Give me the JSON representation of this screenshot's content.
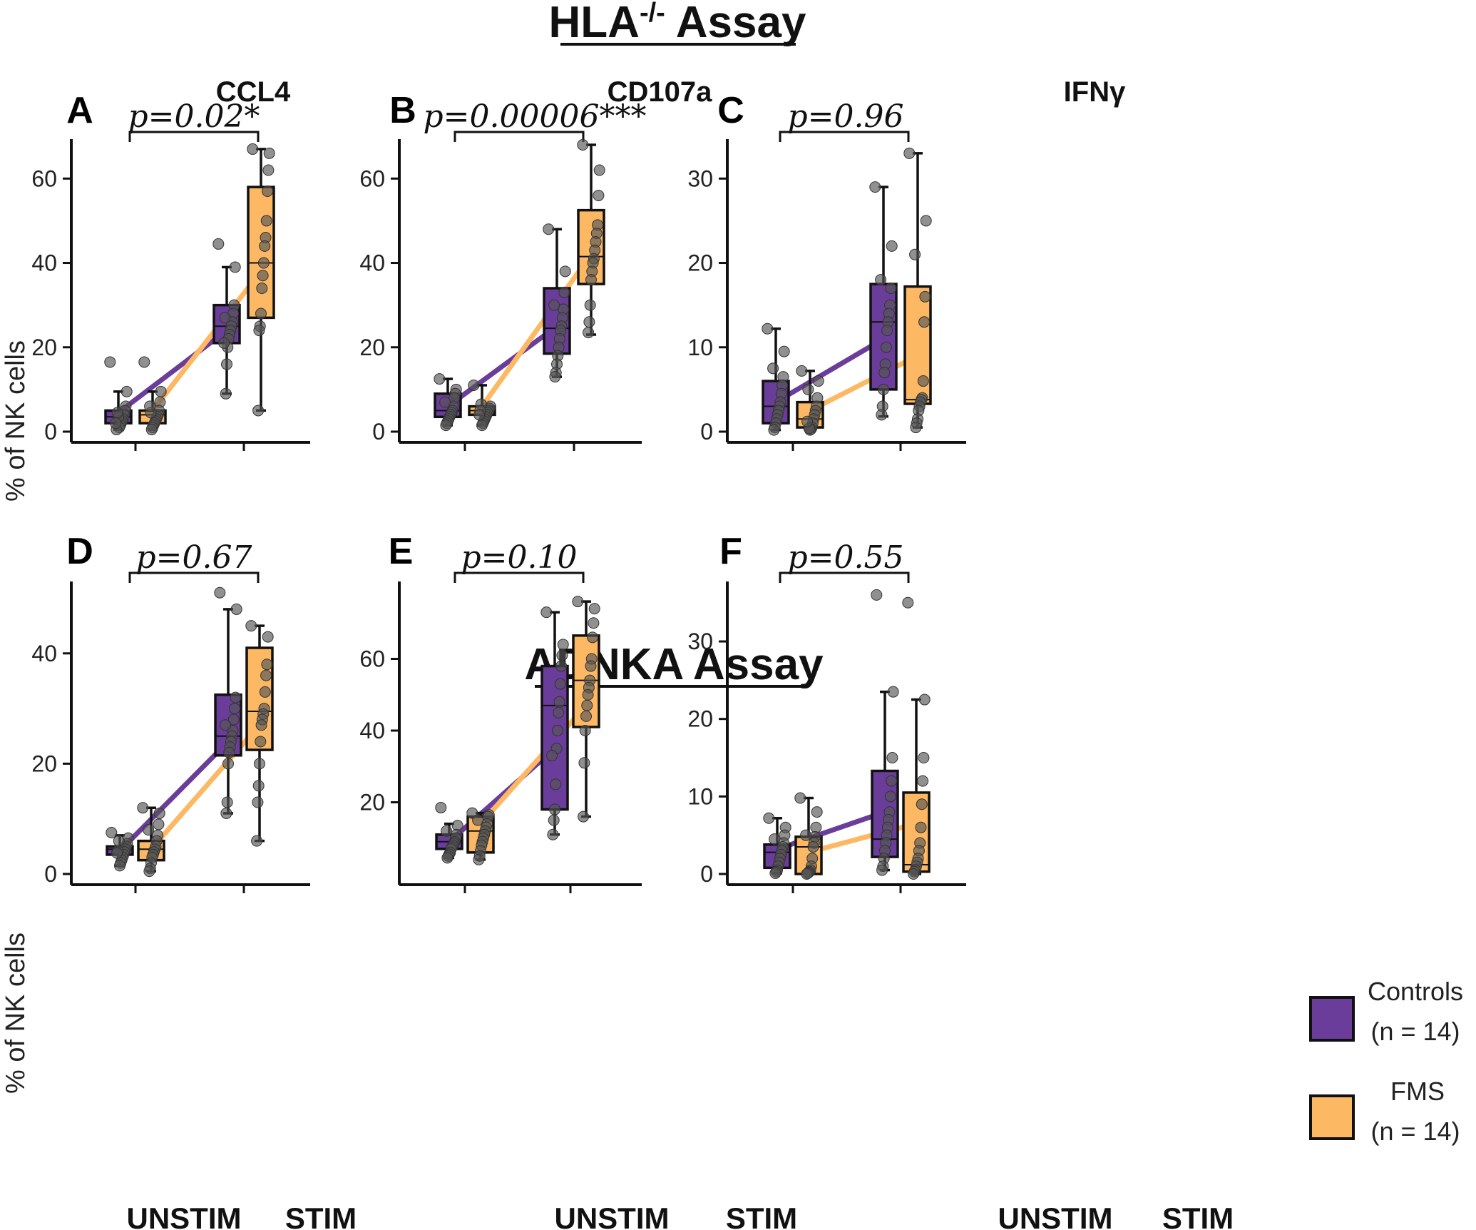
{
  "titles": {
    "hla_main": "HLA",
    "hla_sup": "-/-",
    "hla_tail": " Assay",
    "adnka": "ADNKA Assay"
  },
  "columns": [
    "CCL4",
    "CD107a",
    "IFNγ"
  ],
  "ylabel": "% of NK cells",
  "legend": {
    "controls_label": "Controls",
    "controls_n": "(n = 14)",
    "fms_label": "FMS",
    "fms_n": "(n = 14)"
  },
  "colors": {
    "controls": "#6a3d9a",
    "fms": "#fdb863",
    "point": "#555555"
  },
  "chart_data": [
    {
      "letter": "A",
      "assay": "HLA-/-",
      "title": "CCL4",
      "type": "box",
      "pvalue": "p=0.02*",
      "ylim": [
        0,
        68
      ],
      "yticks": [
        0,
        20,
        40,
        60
      ],
      "categories": [
        "UNSTIM",
        "STIM"
      ],
      "series": [
        {
          "name": "Controls",
          "boxes": [
            {
              "q1": 2,
              "median": 3.5,
              "q3": 5,
              "min": 0.5,
              "max": 9.5
            },
            {
              "q1": 21,
              "median": 25,
              "q3": 30,
              "min": 9,
              "max": 39
            }
          ],
          "points": [
            [
              16.5,
              9.5,
              6,
              5,
              4,
              3,
              2.5,
              2,
              1.5,
              1,
              3.5,
              4.5,
              0.5,
              2
            ],
            [
              44.5,
              39,
              30,
              28,
              26,
              25,
              24,
              23,
              22,
              20,
              16,
              9,
              27,
              21
            ]
          ],
          "means": [
            4.5,
            24
          ]
        },
        {
          "name": "FMS",
          "boxes": [
            {
              "q1": 2,
              "median": 4,
              "q3": 5,
              "min": 0.5,
              "max": 9.5
            },
            {
              "q1": 27,
              "median": 40,
              "q3": 58,
              "min": 5,
              "max": 67
            }
          ],
          "points": [
            [
              16.5,
              9.5,
              7,
              5,
              4,
              3.5,
              3,
              2.5,
              2,
              1.5,
              1,
              0.5,
              4.5,
              6
            ],
            [
              67,
              66,
              62,
              57,
              50,
              46,
              44,
              40,
              37,
              34,
              28,
              25,
              24,
              5
            ]
          ],
          "means": [
            5,
            38
          ]
        }
      ]
    },
    {
      "letter": "B",
      "assay": "HLA-/-",
      "title": "CD107a",
      "type": "box",
      "pvalue": "p=0.00006***",
      "ylim": [
        0,
        68
      ],
      "yticks": [
        0,
        20,
        40,
        60
      ],
      "categories": [
        "UNSTIM",
        "STIM"
      ],
      "series": [
        {
          "name": "Controls",
          "boxes": [
            {
              "q1": 3.5,
              "median": 5,
              "q3": 9,
              "min": 1.5,
              "max": 12.5
            },
            {
              "q1": 18.5,
              "median": 24.5,
              "q3": 34,
              "min": 13,
              "max": 48
            }
          ],
          "points": [
            [
              12.5,
              10,
              9,
              8,
              6,
              5,
              4.5,
              4,
              3.5,
              3,
              2.5,
              2,
              1.5,
              7
            ],
            [
              48,
              38,
              33,
              29,
              27,
              25,
              24,
              22,
              20,
              18,
              16,
              14,
              13,
              30
            ]
          ],
          "means": [
            6,
            25
          ]
        },
        {
          "name": "FMS",
          "boxes": [
            {
              "q1": 4,
              "median": 5,
              "q3": 6,
              "min": 1.5,
              "max": 11
            },
            {
              "q1": 35,
              "median": 41.5,
              "q3": 52.5,
              "min": 23,
              "max": 68
            }
          ],
          "points": [
            [
              11,
              6,
              5.5,
              5,
              4.5,
              4,
              3.5,
              3,
              2.5,
              2,
              1.5,
              6.5,
              5,
              4
            ],
            [
              68,
              62,
              56,
              49,
              47,
              45,
              43,
              41,
              40,
              38,
              36,
              30,
              26,
              23.5
            ]
          ],
          "means": [
            6,
            42
          ]
        }
      ]
    },
    {
      "letter": "C",
      "assay": "HLA-/-",
      "title": "IFNγ",
      "type": "box",
      "pvalue": "p=0.96",
      "ylim": [
        0,
        34
      ],
      "yticks": [
        0,
        10,
        20,
        30
      ],
      "categories": [
        "UNSTIM",
        "STIM"
      ],
      "series": [
        {
          "name": "Controls",
          "boxes": [
            {
              "q1": 1,
              "median": 3,
              "q3": 6,
              "min": 0.2,
              "max": 12.2
            },
            {
              "q1": 5,
              "median": 13,
              "q3": 17.5,
              "min": 1.8,
              "max": 29
            }
          ],
          "points": [
            [
              12.2,
              9.5,
              6.5,
              5.5,
              4.5,
              3.5,
              3,
              2.5,
              2,
              1.5,
              1,
              0.5,
              0.2,
              7.5
            ],
            [
              29,
              22,
              17,
              15,
              14,
              13,
              12,
              10,
              8,
              7,
              5,
              3,
              2,
              18
            ]
          ],
          "means": [
            3.5,
            11
          ]
        },
        {
          "name": "FMS",
          "boxes": [
            {
              "q1": 0.5,
              "median": 1.5,
              "q3": 3.5,
              "min": 0.2,
              "max": 7.2
            },
            {
              "q1": 3.3,
              "median": 3.8,
              "q3": 17.2,
              "min": 0.5,
              "max": 33
            }
          ],
          "points": [
            [
              7.2,
              6,
              4,
              3,
              2.5,
              2,
              1.5,
              1,
              0.5,
              0.3,
              0.2,
              0.4,
              5,
              1.2
            ],
            [
              33,
              25,
              16,
              13,
              6,
              4,
              3.8,
              3.5,
              3,
              2.5,
              1.5,
              1,
              0.5,
              21
            ]
          ],
          "means": [
            2.5,
            9
          ]
        }
      ]
    },
    {
      "letter": "D",
      "assay": "ADNKA",
      "title": "",
      "type": "box",
      "pvalue": "p=0.67",
      "ylim": [
        0,
        52
      ],
      "yticks": [
        0,
        20,
        40
      ],
      "ytick_labels": [
        "0",
        "20",
        "40"
      ],
      "categories": [
        "UNSTIM",
        "STIM"
      ],
      "series": [
        {
          "name": "Controls",
          "boxes": [
            {
              "q1": 3.5,
              "median": 4.5,
              "q3": 5,
              "min": 1.5,
              "max": 7
            },
            {
              "q1": 21.5,
              "median": 25,
              "q3": 32.5,
              "min": 11,
              "max": 48
            }
          ],
          "points": [
            [
              7.5,
              6.5,
              5.5,
              5,
              4.5,
              4,
              3.5,
              3,
              2.5,
              2,
              1.5,
              6,
              4.2,
              3.8
            ],
            [
              51,
              48,
              32,
              30,
              28,
              26,
              25,
              24,
              23,
              22,
              20,
              13,
              11,
              27
            ]
          ],
          "means": [
            4.2,
            24
          ]
        },
        {
          "name": "FMS",
          "boxes": [
            {
              "q1": 2.5,
              "median": 4.5,
              "q3": 6,
              "min": 0.5,
              "max": 12
            },
            {
              "q1": 22.5,
              "median": 29.5,
              "q3": 41,
              "min": 6,
              "max": 45
            }
          ],
          "points": [
            [
              12,
              11,
              9,
              7,
              6,
              5,
              4.5,
              4,
              3.5,
              3,
              2,
              1,
              0.5,
              8
            ],
            [
              45,
              43,
              38,
              36,
              33,
              30,
              29,
              28,
              27,
              24,
              20,
              16,
              13,
              6
            ]
          ],
          "means": [
            4.5,
            27
          ]
        }
      ]
    },
    {
      "letter": "E",
      "assay": "ADNKA",
      "title": "",
      "type": "box",
      "pvalue": "p=0.10",
      "ylim": [
        0,
        80
      ],
      "yticks": [
        20,
        40,
        60
      ],
      "categories": [
        "UNSTIM",
        "STIM"
      ],
      "series": [
        {
          "name": "Controls",
          "boxes": [
            {
              "q1": 7,
              "median": 9,
              "q3": 11,
              "min": 4.5,
              "max": 14
            },
            {
              "q1": 18,
              "median": 47,
              "q3": 58,
              "min": 11,
              "max": 73
            }
          ],
          "points": [
            [
              18.5,
              13.5,
              11,
              10,
              9,
              8.5,
              8,
              7.5,
              7,
              6,
              5.5,
              5,
              4.5,
              12
            ],
            [
              73,
              64,
              61,
              58,
              53,
              48,
              45,
              40,
              35,
              25,
              18,
              15,
              11,
              33
            ]
          ],
          "means": [
            9,
            35
          ]
        },
        {
          "name": "FMS",
          "boxes": [
            {
              "q1": 6,
              "median": 12,
              "q3": 16,
              "min": 4,
              "max": 17
            },
            {
              "q1": 41,
              "median": 54,
              "q3": 66.5,
              "min": 16,
              "max": 76
            }
          ],
          "points": [
            [
              17,
              16.5,
              16,
              14,
              13,
              12,
              11,
              10,
              9,
              8,
              6.5,
              5,
              4,
              15
            ],
            [
              76,
              74,
              70,
              66,
              60,
              58,
              54,
              52,
              50,
              47,
              44,
              40,
              31,
              16
            ]
          ],
          "means": [
            14,
            47
          ]
        }
      ]
    },
    {
      "letter": "F",
      "assay": "ADNKA",
      "title": "",
      "type": "box",
      "pvalue": "p=0.55",
      "ylim": [
        0,
        37
      ],
      "yticks": [
        0,
        10,
        20,
        30
      ],
      "categories": [
        "UNSTIM",
        "STIM"
      ],
      "series": [
        {
          "name": "Controls",
          "boxes": [
            {
              "q1": 0.8,
              "median": 2.8,
              "q3": 3.8,
              "min": 0.1,
              "max": 7.2
            },
            {
              "q1": 2.2,
              "median": 4.5,
              "q3": 13.3,
              "min": 0.5,
              "max": 23.5
            }
          ],
          "points": [
            [
              7.2,
              6,
              5,
              4,
              3.5,
              3,
              2.5,
              2,
              1.5,
              1,
              0.5,
              0.3,
              0.1,
              4.5
            ],
            [
              36,
              23.5,
              15,
              12,
              10,
              8,
              7,
              6,
              5,
              4,
              3,
              2,
              1,
              0.5
            ]
          ],
          "means": [
            3.2,
            8
          ]
        },
        {
          "name": "FMS",
          "boxes": [
            {
              "q1": 0,
              "median": 3.5,
              "q3": 4.8,
              "min": 0,
              "max": 9.8
            },
            {
              "q1": 0.3,
              "median": 1.2,
              "q3": 10.5,
              "min": 0,
              "max": 22.5
            }
          ],
          "points": [
            [
              9.8,
              8,
              6,
              4.8,
              4,
              3.5,
              2,
              1,
              0.5,
              0.3,
              0.2,
              0.1,
              0,
              5
            ],
            [
              35,
              22.5,
              15,
              12,
              9,
              6,
              4,
              3,
              2,
              1.5,
              1,
              0.5,
              0.3,
              0
            ]
          ],
          "means": [
            2.8,
            6.5
          ]
        }
      ]
    }
  ]
}
